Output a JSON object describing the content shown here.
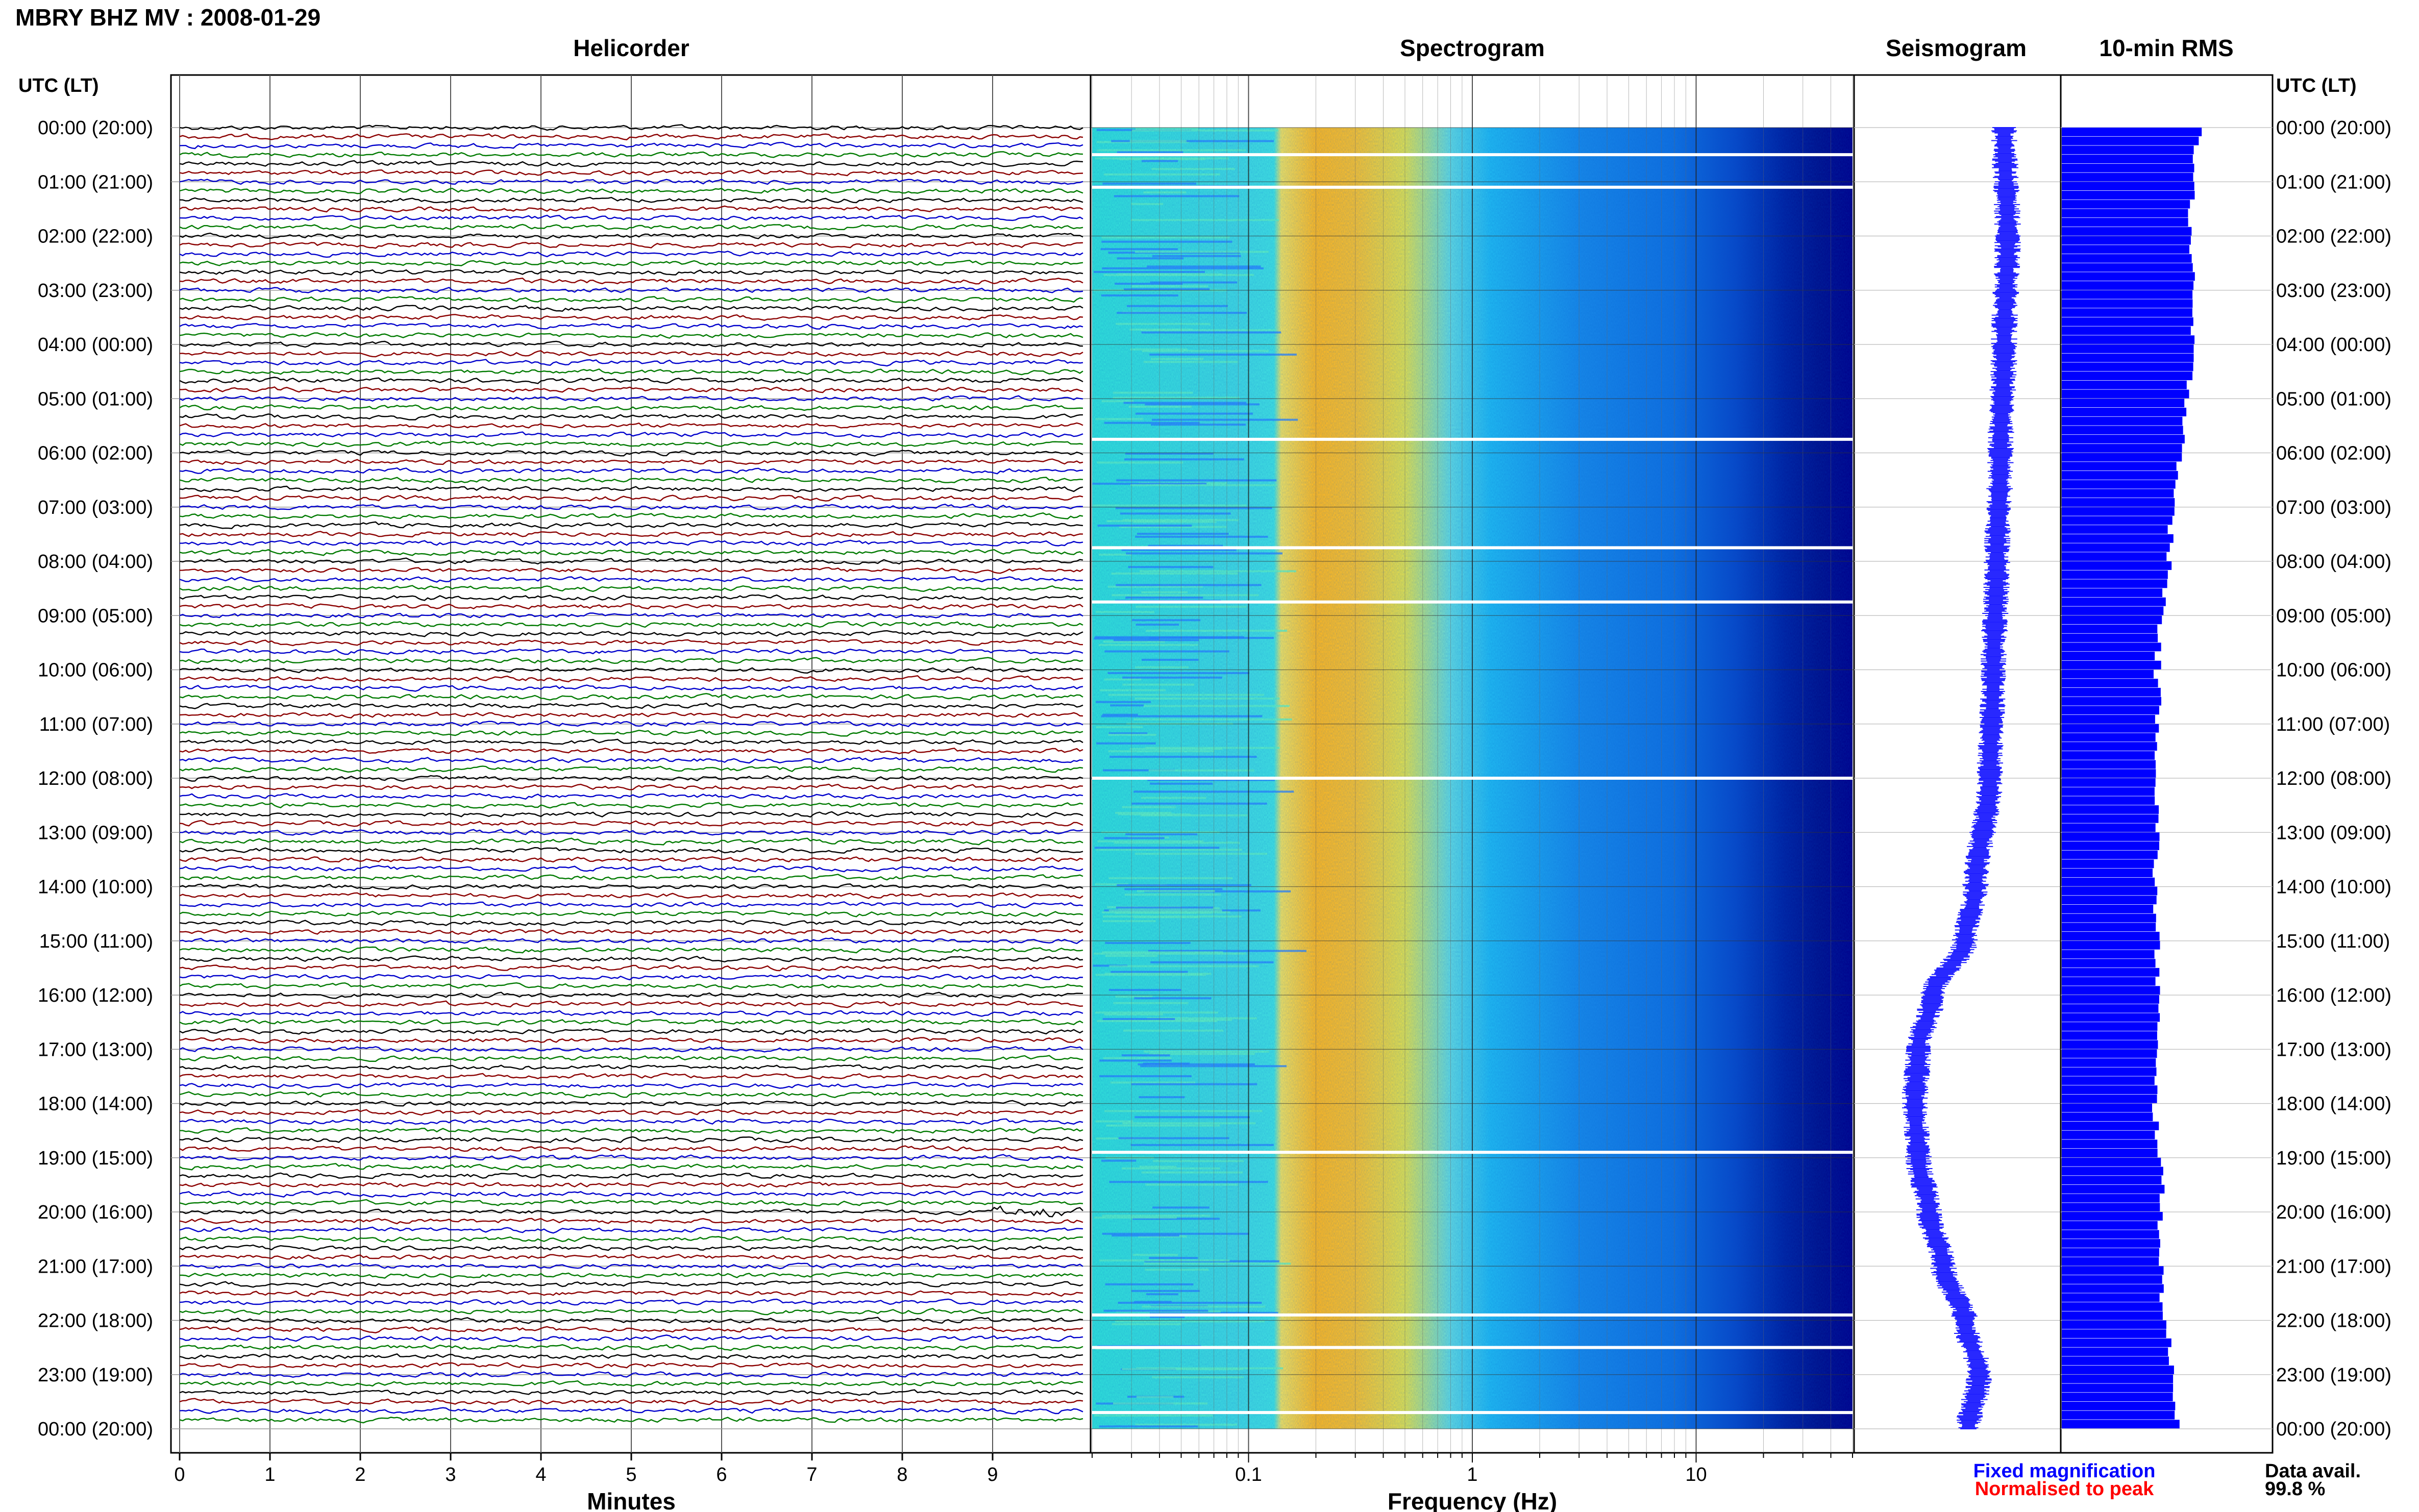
{
  "header": {
    "station_title": "MBRY BHZ MV : 2008-01-29",
    "time_axis_label": "UTC (LT)"
  },
  "panels": {
    "helicorder_title": "Helicorder",
    "spectrogram_title": "Spectrogram",
    "seismogram_title": "Seismogram",
    "rms_title": "10-min RMS"
  },
  "footer": {
    "helicorder_xlabel": "Minutes",
    "spectrogram_xlabel": "Frequency (Hz)",
    "legend_fixed": "Fixed magnification",
    "legend_normalised": "Normalised to peak",
    "data_avail_label": "Data avail.",
    "data_avail_value": "99.8 %"
  },
  "colors": {
    "trace_cycle": [
      "#000000",
      "#8b0000",
      "#0000cc",
      "#007a00"
    ],
    "seismogram": "#1a1aff",
    "rms_bar": "#0000ff",
    "legend_fixed": "#0000ff",
    "legend_normalised": "#ff0000",
    "spectrogram_low": "#00008b",
    "spectrogram_high": "#ff2000"
  },
  "chart_data": [
    {
      "type": "line",
      "name": "helicorder",
      "xlabel": "Minutes",
      "x_ticks": [
        0,
        1,
        2,
        3,
        4,
        5,
        6,
        7,
        8,
        9
      ],
      "xlim": [
        0,
        10
      ],
      "hour_labels": [
        "00:00 (20:00)",
        "01:00 (21:00)",
        "02:00 (22:00)",
        "03:00 (23:00)",
        "04:00 (00:00)",
        "05:00 (01:00)",
        "06:00 (02:00)",
        "07:00 (03:00)",
        "08:00 (04:00)",
        "09:00 (05:00)",
        "10:00 (06:00)",
        "11:00 (07:00)",
        "12:00 (08:00)",
        "13:00 (09:00)",
        "14:00 (10:00)",
        "15:00 (11:00)",
        "16:00 (12:00)",
        "17:00 (13:00)",
        "18:00 (14:00)",
        "19:00 (15:00)",
        "20:00 (16:00)",
        "21:00 (17:00)",
        "22:00 (18:00)",
        "23:00 (19:00)",
        "00:00 (20:00)"
      ],
      "minutes_per_trace": 10,
      "traces": 144,
      "notable_event": {
        "hour": "20:00",
        "minute_start": 9.0,
        "minute_end": 9.9
      }
    },
    {
      "type": "heatmap",
      "name": "spectrogram",
      "xlabel": "Frequency (Hz)",
      "xscale": "log",
      "xlim": [
        0.02,
        50
      ],
      "x_ticks": [
        0.1,
        1,
        10
      ],
      "x_tick_labels": [
        "0.1",
        "1",
        "10"
      ],
      "peak_band_hz": [
        0.14,
        0.6
      ],
      "gap_hours": [
        0.5,
        1.1,
        5.75,
        7.75,
        8.75,
        12.0,
        18.9,
        21.9,
        22.5,
        23.7
      ]
    },
    {
      "type": "line",
      "name": "seismogram",
      "orientation": "vertical",
      "description": "daily low-frequency trend, x offset per hour (relative units, positive = right)",
      "hours": [
        0,
        2,
        4,
        6,
        8,
        10,
        12,
        14,
        15,
        16,
        17,
        18,
        19,
        20,
        21,
        22,
        23,
        24
      ],
      "offset": [
        0.55,
        0.6,
        0.55,
        0.5,
        0.45,
        0.4,
        0.35,
        0.15,
        0.0,
        -0.45,
        -0.65,
        -0.7,
        -0.65,
        -0.5,
        -0.3,
        0.0,
        0.2,
        0.05
      ]
    },
    {
      "type": "bar",
      "name": "rms_10min",
      "orientation": "horizontal",
      "interval_minutes": 10,
      "scale": "relative 0-1",
      "hourly_values": [
        0.66,
        0.63,
        0.62,
        0.63,
        0.63,
        0.61,
        0.58,
        0.53,
        0.52,
        0.48,
        0.46,
        0.47,
        0.46,
        0.46,
        0.45,
        0.46,
        0.47,
        0.45,
        0.45,
        0.48,
        0.48,
        0.48,
        0.5,
        0.54,
        0.57
      ]
    }
  ]
}
